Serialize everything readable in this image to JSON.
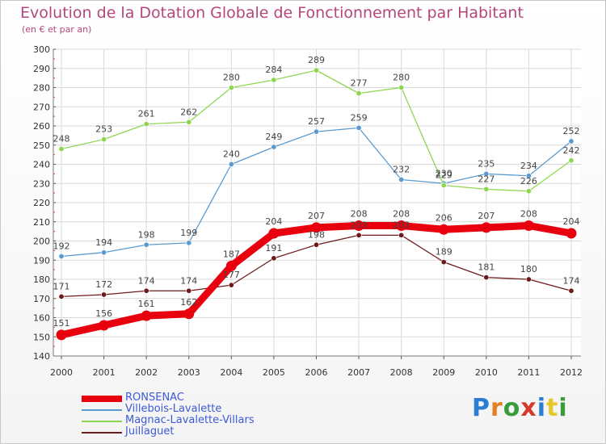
{
  "chart_data": {
    "type": "line",
    "title": "Evolution de la Dotation Globale de Fonctionnement par Habitant",
    "subtitle": "(en € et par an)",
    "xlabel": "",
    "ylabel": "",
    "ylim": [
      140,
      300
    ],
    "yticks": [
      140,
      150,
      160,
      170,
      180,
      190,
      200,
      210,
      220,
      230,
      240,
      250,
      260,
      270,
      280,
      290,
      300
    ],
    "categories": [
      "2000",
      "2001",
      "2002",
      "2003",
      "2004",
      "2005",
      "2006",
      "2007",
      "2008",
      "2009",
      "2010",
      "2011",
      "2012"
    ],
    "grid": true,
    "series": [
      {
        "name": "RONSENAC",
        "color": "#e8000e",
        "values": [
          151,
          156,
          161,
          162,
          187,
          204,
          207,
          208,
          208,
          206,
          207,
          208,
          204
        ]
      },
      {
        "name": "Villebois-Lavalette",
        "color": "#5a9ad0",
        "values": [
          192,
          194,
          198,
          199,
          240,
          249,
          257,
          259,
          232,
          230,
          235,
          234,
          252
        ]
      },
      {
        "name": "Magnac-Lavalette-Villars",
        "color": "#8fd650",
        "values": [
          248,
          253,
          261,
          262,
          280,
          284,
          289,
          277,
          280,
          229,
          227,
          226,
          242
        ]
      },
      {
        "name": "Juillaguet",
        "color": "#6e1a1a",
        "values": [
          171,
          172,
          174,
          174,
          177,
          191,
          198,
          203,
          203,
          189,
          181,
          180,
          174
        ]
      }
    ]
  },
  "legend": {
    "items": [
      {
        "label": "RONSENAC",
        "color": "#e8000e"
      },
      {
        "label": "Villebois-Lavalette",
        "color": "#5a9ad0"
      },
      {
        "label": "Magnac-Lavalette-Villars",
        "color": "#8fd650"
      },
      {
        "label": "Juillaguet",
        "color": "#6e1a1a"
      }
    ]
  },
  "brand": {
    "text": "Proxiti",
    "letter_colors": [
      "#2a7fd4",
      "#e67e22",
      "#3a9b3a",
      "#d63a2a",
      "#2a7fd4",
      "#e6c82a",
      "#3a9b3a"
    ]
  }
}
